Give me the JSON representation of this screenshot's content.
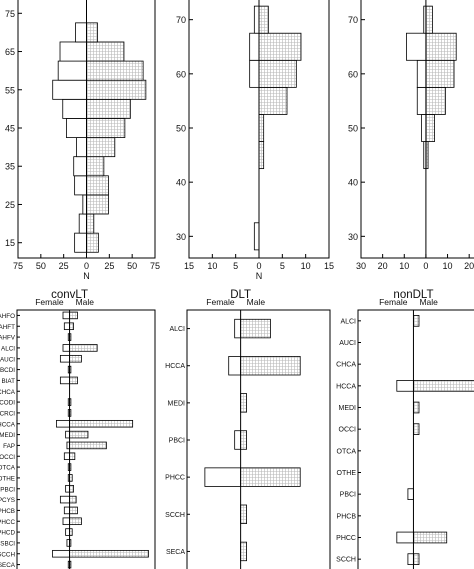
{
  "chart_data": [
    {
      "type": "bar",
      "orientation": "population-pyramid",
      "y_kind": "numeric",
      "y": [
        15,
        20,
        25,
        30,
        35,
        40,
        45,
        50,
        55,
        60,
        65,
        70
      ],
      "y_ticks": [
        15,
        25,
        35,
        45,
        55,
        65,
        75
      ],
      "ylim": [
        11,
        79
      ],
      "xlim": [
        -75,
        75
      ],
      "x_ticks": [
        "75",
        "50",
        "25",
        "0",
        "25",
        "50",
        "75"
      ],
      "xlabel": "N",
      "title": "",
      "series": [
        {
          "name": "Female",
          "values": [
            13,
            8,
            4,
            13,
            14,
            11,
            22,
            26,
            37,
            31,
            29,
            12
          ]
        },
        {
          "name": "Male",
          "values": [
            13,
            8,
            24,
            24,
            19,
            31,
            42,
            48,
            65,
            62,
            41,
            12
          ]
        }
      ]
    },
    {
      "type": "bar",
      "orientation": "population-pyramid",
      "y_kind": "numeric",
      "y": [
        30,
        35,
        40,
        45,
        50,
        55,
        60,
        65,
        70
      ],
      "y_ticks": [
        30,
        40,
        50,
        60,
        70
      ],
      "ylim": [
        26,
        74
      ],
      "xlim": [
        -15,
        15
      ],
      "x_ticks": [
        "15",
        "10",
        "5",
        "0",
        "5",
        "10",
        "15"
      ],
      "xlabel": "N",
      "title": "",
      "series": [
        {
          "name": "Female",
          "values": [
            1,
            0,
            0,
            0,
            0,
            0,
            2,
            2,
            1
          ]
        },
        {
          "name": "Male",
          "values": [
            0,
            0,
            0,
            1,
            1,
            6,
            8,
            9,
            2
          ]
        }
      ]
    },
    {
      "type": "bar",
      "orientation": "population-pyramid",
      "y_kind": "numeric",
      "y": [
        30,
        35,
        40,
        45,
        50,
        55,
        60,
        65,
        70
      ],
      "y_ticks": [
        30,
        40,
        50,
        60,
        70
      ],
      "ylim": [
        26,
        74
      ],
      "xlim": [
        -30,
        25
      ],
      "x_ticks": [
        "30",
        "20",
        "10",
        "0",
        "10",
        "20"
      ],
      "xlabel": "",
      "title": "",
      "series": [
        {
          "name": "Female",
          "values": [
            0,
            0,
            0,
            1,
            2,
            4,
            4,
            9,
            1
          ]
        },
        {
          "name": "Male",
          "values": [
            0,
            0,
            0,
            1,
            4,
            9,
            13,
            14,
            3
          ]
        }
      ]
    },
    {
      "type": "bar",
      "orientation": "population-pyramid",
      "y_kind": "category",
      "title": "convLT",
      "left_label": "Female",
      "right_label": "Male",
      "categories": [
        "AHFO",
        "AHFT",
        "AHFV",
        "ALCI",
        "AUCI",
        "BCDI",
        "BIAT",
        "CHCA",
        "CODI",
        "CRCI",
        "HCCA",
        "MEDI",
        "FAP",
        "OCCI",
        "OTCA",
        "OTHE",
        "PBCI",
        "PCYS",
        "PHCB",
        "PHCC",
        "PHCD",
        "SBCI",
        "SCCH",
        "SECA"
      ],
      "xlim": [
        -40,
        65
      ],
      "series": [
        {
          "name": "Female",
          "values": [
            5,
            4,
            1,
            5,
            7,
            1,
            7,
            0,
            1,
            1,
            10,
            3,
            2,
            4,
            1,
            1,
            3,
            7,
            4,
            5,
            3,
            2,
            13,
            1
          ]
        },
        {
          "name": "Male",
          "values": [
            6,
            3,
            1,
            21,
            9,
            1,
            6,
            0,
            1,
            1,
            48,
            14,
            28,
            4,
            1,
            2,
            3,
            5,
            6,
            9,
            2,
            1,
            60,
            1
          ]
        }
      ]
    },
    {
      "type": "bar",
      "orientation": "population-pyramid",
      "y_kind": "category",
      "title": "DLT",
      "left_label": "Female",
      "right_label": "Male",
      "categories": [
        "ALCI",
        "HCCA",
        "MEDI",
        "PBCI",
        "PHCC",
        "SCCH",
        "SECA"
      ],
      "xlim": [
        -9,
        15
      ],
      "series": [
        {
          "name": "Female",
          "values": [
            1,
            2,
            0,
            1,
            6,
            0,
            0
          ]
        },
        {
          "name": "Male",
          "values": [
            5,
            10,
            1,
            1,
            10,
            1,
            1
          ]
        }
      ]
    },
    {
      "type": "bar",
      "orientation": "population-pyramid",
      "y_kind": "category",
      "title": "nonDLT",
      "left_label": "Female",
      "right_label": "Male",
      "categories": [
        "ALCI",
        "AUCI",
        "CHCA",
        "HCCA",
        "MEDI",
        "OCCI",
        "OTCA",
        "OTHE",
        "PBCI",
        "PHCB",
        "PHCC",
        "SCCH"
      ],
      "xlim": [
        -10,
        12
      ],
      "series": [
        {
          "name": "Female",
          "values": [
            0,
            0,
            0,
            3,
            0,
            0,
            0,
            0,
            1,
            0,
            3,
            1
          ]
        },
        {
          "name": "Male",
          "values": [
            1,
            0,
            0,
            12,
            1,
            1,
            0,
            0,
            0,
            0,
            6,
            1
          ]
        }
      ]
    }
  ]
}
